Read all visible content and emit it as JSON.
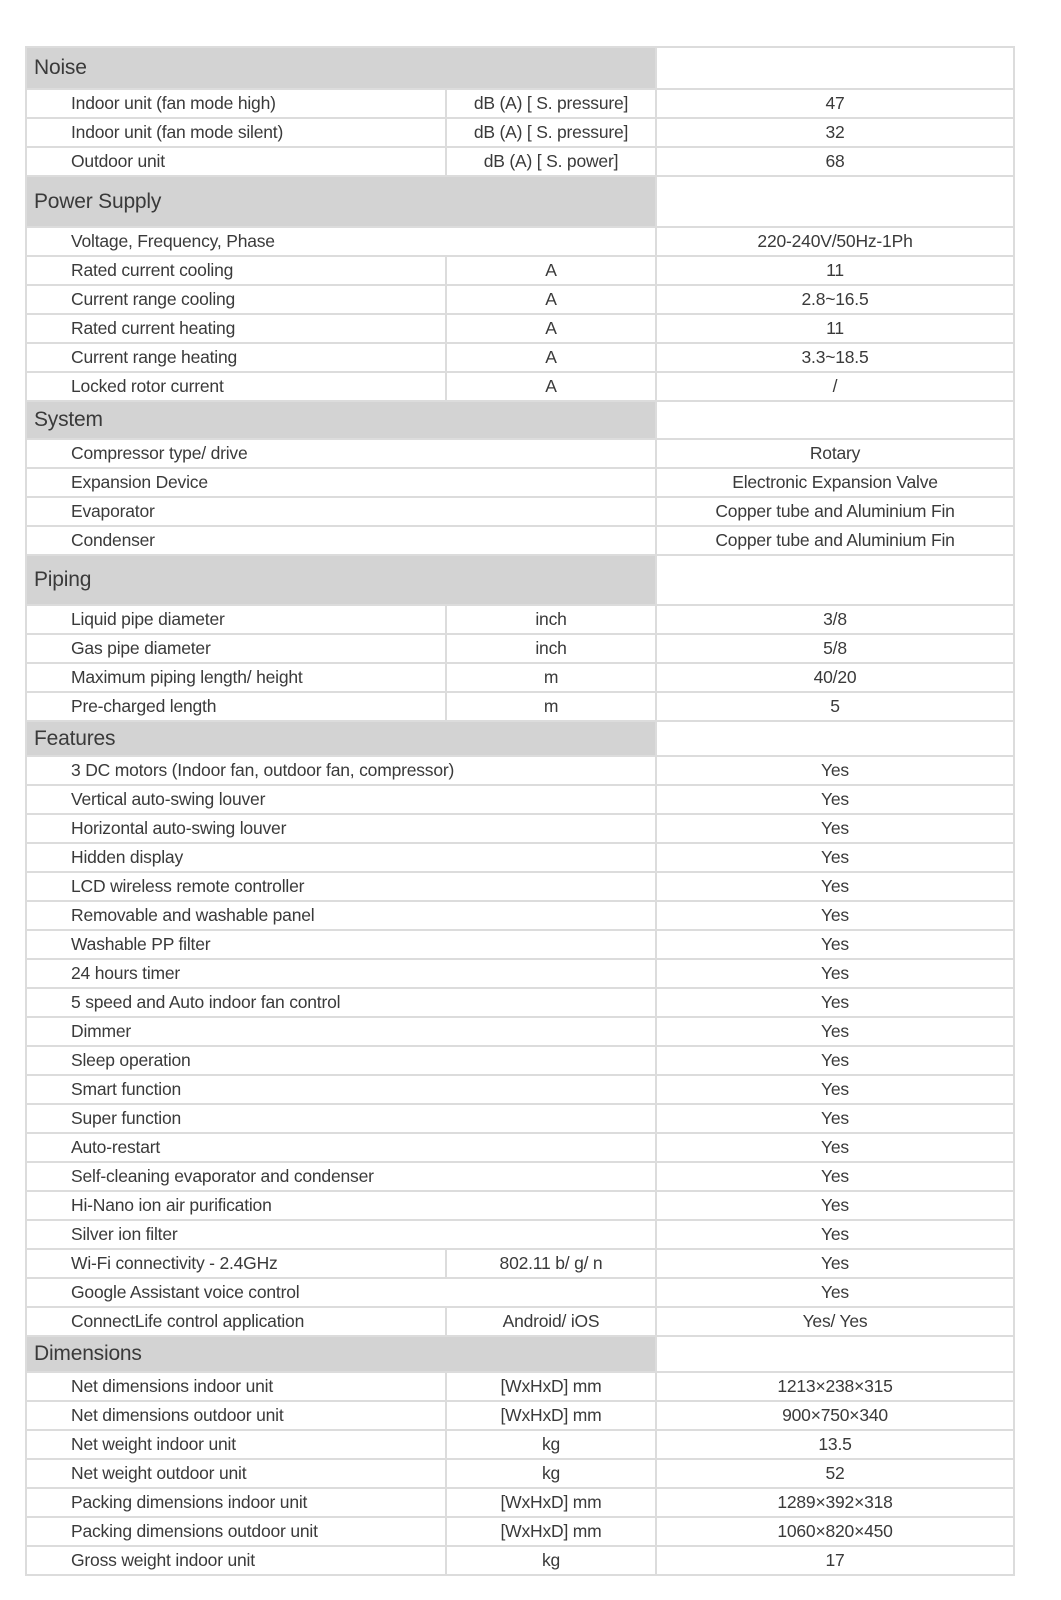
{
  "colors": {
    "section_header_bg": "#d3d3d3",
    "grid_border": "#dcdcdc",
    "text": "#3a3a3a",
    "page_bg": "#ffffff"
  },
  "table": {
    "sections": [
      {
        "title": "Noise",
        "rows": [
          {
            "label": "Indoor unit (fan mode high)",
            "unit": "dB (A) [ S. pressure]",
            "value": "47"
          },
          {
            "label": "Indoor unit (fan mode silent)",
            "unit": "dB (A) [ S. pressure]",
            "value": "32"
          },
          {
            "label": "Outdoor unit",
            "unit": "dB (A) [ S. power]",
            "value": "68"
          }
        ]
      },
      {
        "title": "Power Supply",
        "rows": [
          {
            "label": "Voltage, Frequency, Phase",
            "value": "220-240V/50Hz-1Ph"
          },
          {
            "label": "Rated current cooling",
            "unit": "A",
            "value": "11"
          },
          {
            "label": "Current range cooling",
            "unit": "A",
            "value": "2.8~16.5"
          },
          {
            "label": "Rated current heating",
            "unit": "A",
            "value": "11"
          },
          {
            "label": "Current range heating",
            "unit": "A",
            "value": "3.3~18.5"
          },
          {
            "label": "Locked rotor current",
            "unit": "A",
            "value": "/"
          }
        ]
      },
      {
        "title": "System",
        "rows": [
          {
            "label": "Compressor type/ drive",
            "value": "Rotary"
          },
          {
            "label": "Expansion Device",
            "value": "Electronic Expansion Valve"
          },
          {
            "label": "Evaporator",
            "value": "Copper tube and Aluminium Fin"
          },
          {
            "label": "Condenser",
            "value": "Copper tube and Aluminium Fin"
          }
        ]
      },
      {
        "title": "Piping",
        "rows": [
          {
            "label": "Liquid pipe diameter",
            "unit": "inch",
            "value": "3/8"
          },
          {
            "label": "Gas pipe diameter",
            "unit": "inch",
            "value": "5/8"
          },
          {
            "label": "Maximum piping length/ height",
            "unit": "m",
            "value": "40/20"
          },
          {
            "label": "Pre-charged length",
            "unit": "m",
            "value": "5"
          }
        ]
      },
      {
        "title": "Features",
        "rows": [
          {
            "label": "3 DC motors (Indoor fan, outdoor fan, compressor)",
            "value": "Yes"
          },
          {
            "label": "Vertical auto-swing louver",
            "value": "Yes"
          },
          {
            "label": "Horizontal auto-swing louver",
            "value": "Yes"
          },
          {
            "label": "Hidden display",
            "value": "Yes"
          },
          {
            "label": "LCD wireless remote controller",
            "value": "Yes"
          },
          {
            "label": "Removable and washable panel",
            "value": "Yes"
          },
          {
            "label": "Washable PP filter",
            "value": "Yes"
          },
          {
            "label": "24 hours timer",
            "value": "Yes"
          },
          {
            "label": "5 speed and Auto indoor fan control",
            "value": "Yes"
          },
          {
            "label": "Dimmer",
            "value": "Yes"
          },
          {
            "label": "Sleep operation",
            "value": "Yes"
          },
          {
            "label": "Smart function",
            "value": "Yes"
          },
          {
            "label": "Super function",
            "value": "Yes"
          },
          {
            "label": "Auto-restart",
            "value": "Yes"
          },
          {
            "label": "Self-cleaning evaporator and condenser",
            "value": "Yes"
          },
          {
            "label": "Hi-Nano ion air purification",
            "value": "Yes"
          },
          {
            "label": "Silver ion filter",
            "value": "Yes"
          },
          {
            "label": "Wi-Fi connectivity - 2.4GHz",
            "unit": "802.11 b/ g/ n",
            "value": "Yes"
          },
          {
            "label": "Google Assistant  voice control",
            "value": "Yes"
          },
          {
            "label": "ConnectLife control application",
            "unit": "Android/ iOS",
            "value": "Yes/ Yes"
          }
        ]
      },
      {
        "title": "Dimensions",
        "rows": [
          {
            "label": "Net dimensions indoor unit",
            "unit": "[WxHxD] mm",
            "value": "1213×238×315"
          },
          {
            "label": "Net dimensions outdoor unit",
            "unit": "[WxHxD] mm",
            "value": "900×750×340"
          },
          {
            "label": "Net weight indoor unit",
            "unit": "kg",
            "value": "13.5"
          },
          {
            "label": "Net weight outdoor unit",
            "unit": "kg",
            "value": "52"
          },
          {
            "label": "Packing dimensions indoor unit",
            "unit": "[WxHxD] mm",
            "value": "1289×392×318"
          },
          {
            "label": "Packing dimensions outdoor unit",
            "unit": "[WxHxD] mm",
            "value": "1060×820×450"
          },
          {
            "label": "Gross weight indoor unit",
            "unit": "kg",
            "value": "17"
          }
        ]
      }
    ]
  }
}
